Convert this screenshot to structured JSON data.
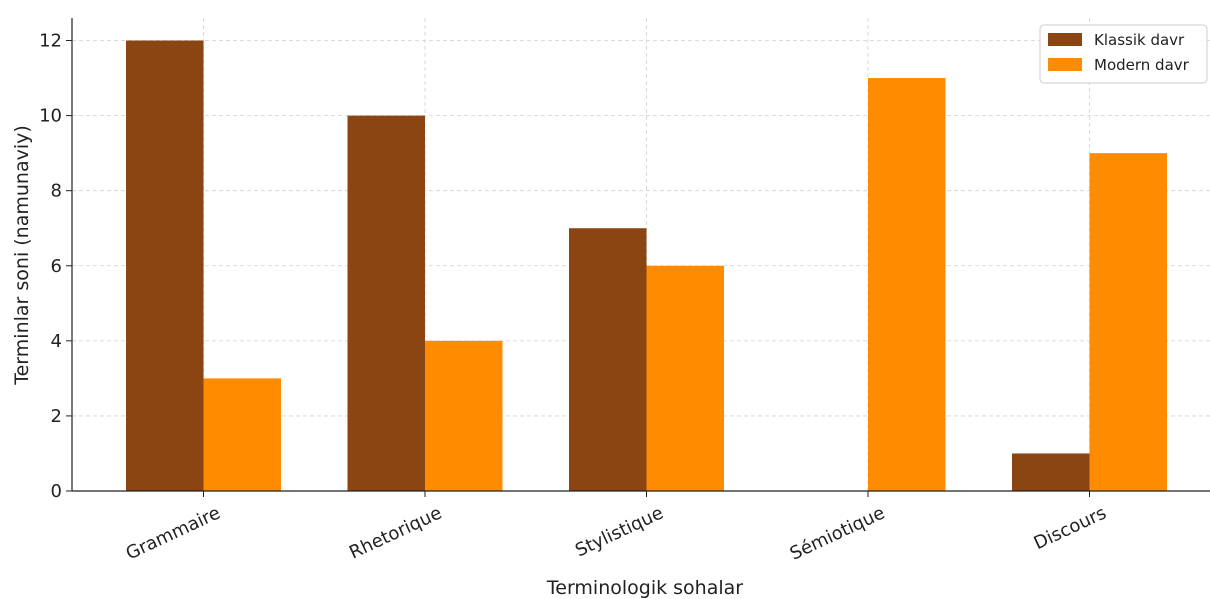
{
  "chart_data": {
    "type": "bar",
    "categories": [
      "Grammaire",
      "Rhetorique",
      "Stylistique",
      "Sémiotique",
      "Discours"
    ],
    "series": [
      {
        "name": "Klassik davr",
        "values": [
          12,
          10,
          7,
          0,
          1
        ],
        "color": "#8B4513"
      },
      {
        "name": "Modern davr",
        "values": [
          3,
          4,
          6,
          11,
          9
        ],
        "color": "#FF8C00"
      }
    ],
    "title": "",
    "xlabel": "Terminologik sohalar",
    "ylabel": "Terminlar soni (namunaviy)",
    "ylim": [
      0,
      12.6
    ],
    "yticks": [
      0,
      2,
      4,
      6,
      8,
      10,
      12
    ],
    "grid": true,
    "legend_position": "top-right"
  }
}
